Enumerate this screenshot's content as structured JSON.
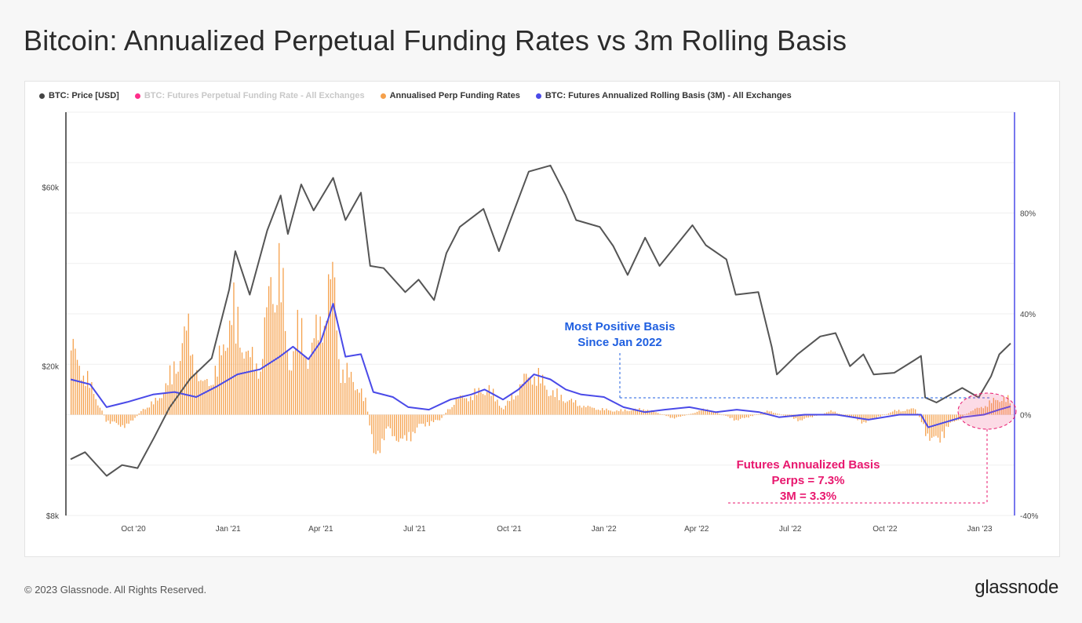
{
  "title": "Bitcoin: Annualized Perpetual Funding Rates vs 3m Rolling Basis",
  "footer": {
    "copyright": "© 2023 Glassnode. All Rights Reserved.",
    "brand": "glassnode"
  },
  "legend": [
    {
      "label": "BTC: Price [USD]",
      "color": "#444444",
      "faded": false
    },
    {
      "label": "BTC: Futures Perpetual Funding Rate - All Exchanges",
      "color": "#ff2d8a",
      "faded": true
    },
    {
      "label": "Annualised Perp Funding Rates",
      "color": "#f5a04b",
      "faded": false
    },
    {
      "label": "BTC: Futures Annualized Rolling Basis (3M) - All Exchanges",
      "color": "#4a4ae8",
      "faded": false
    }
  ],
  "annotations": {
    "basis_peak": [
      "Most Positive Basis",
      "Since Jan 2022"
    ],
    "current": [
      "Futures Annualized Basis",
      "Perps = 7.3%",
      "3M = 3.3%"
    ]
  },
  "chart_data": {
    "type": "line",
    "x_range": [
      "2020-08-01",
      "2023-01-31"
    ],
    "x_ticks": [
      "Oct '20",
      "Jan '21",
      "Apr '21",
      "Jul '21",
      "Oct '21",
      "Jan '22",
      "Apr '22",
      "Jul '22",
      "Oct '22",
      "Jan '23"
    ],
    "y_left": {
      "scale": "log",
      "ticks": [
        "$8k",
        "$20k",
        "$60k"
      ],
      "range": [
        8000,
        95000
      ]
    },
    "y_right": {
      "ticks": [
        "-40%",
        "0%",
        "40%",
        "80%"
      ],
      "range": [
        -40,
        120
      ]
    },
    "grid": true,
    "series": [
      {
        "name": "BTC: Price [USD]",
        "color": "#555555",
        "axis": "left",
        "points": [
          [
            "2020-08-01",
            11300
          ],
          [
            "2020-08-15",
            11800
          ],
          [
            "2020-09-05",
            10200
          ],
          [
            "2020-09-20",
            10900
          ],
          [
            "2020-10-05",
            10700
          ],
          [
            "2020-10-21",
            12900
          ],
          [
            "2020-11-05",
            15500
          ],
          [
            "2020-11-25",
            18500
          ],
          [
            "2020-12-16",
            21000
          ],
          [
            "2021-01-02",
            32000
          ],
          [
            "2021-01-08",
            40500
          ],
          [
            "2021-01-22",
            31000
          ],
          [
            "2021-02-08",
            46000
          ],
          [
            "2021-02-21",
            57000
          ],
          [
            "2021-02-28",
            45000
          ],
          [
            "2021-03-13",
            61000
          ],
          [
            "2021-03-25",
            52000
          ],
          [
            "2021-04-13",
            63500
          ],
          [
            "2021-04-25",
            49000
          ],
          [
            "2021-05-10",
            58000
          ],
          [
            "2021-05-19",
            37000
          ],
          [
            "2021-06-01",
            36500
          ],
          [
            "2021-06-22",
            31500
          ],
          [
            "2021-07-05",
            34000
          ],
          [
            "2021-07-20",
            30000
          ],
          [
            "2021-08-01",
            40000
          ],
          [
            "2021-08-14",
            47000
          ],
          [
            "2021-09-06",
            52500
          ],
          [
            "2021-09-21",
            40500
          ],
          [
            "2021-10-01",
            48000
          ],
          [
            "2021-10-20",
            66000
          ],
          [
            "2021-11-10",
            68500
          ],
          [
            "2021-11-25",
            57000
          ],
          [
            "2021-12-05",
            49000
          ],
          [
            "2021-12-28",
            47000
          ],
          [
            "2022-01-10",
            41800
          ],
          [
            "2022-01-24",
            35000
          ],
          [
            "2022-02-10",
            44000
          ],
          [
            "2022-02-24",
            37000
          ],
          [
            "2022-03-28",
            47500
          ],
          [
            "2022-04-10",
            42000
          ],
          [
            "2022-04-30",
            38500
          ],
          [
            "2022-05-09",
            31000
          ],
          [
            "2022-05-31",
            31500
          ],
          [
            "2022-06-13",
            22500
          ],
          [
            "2022-06-18",
            19000
          ],
          [
            "2022-07-08",
            21500
          ],
          [
            "2022-07-30",
            24000
          ],
          [
            "2022-08-14",
            24500
          ],
          [
            "2022-08-28",
            20000
          ],
          [
            "2022-09-10",
            21500
          ],
          [
            "2022-09-20",
            19000
          ],
          [
            "2022-10-10",
            19200
          ],
          [
            "2022-10-29",
            20700
          ],
          [
            "2022-11-05",
            21300
          ],
          [
            "2022-11-09",
            16500
          ],
          [
            "2022-11-20",
            16000
          ],
          [
            "2022-12-15",
            17500
          ],
          [
            "2022-12-31",
            16500
          ],
          [
            "2023-01-12",
            18800
          ],
          [
            "2023-01-20",
            21500
          ],
          [
            "2023-01-31",
            23000
          ]
        ]
      },
      {
        "name": "BTC: Futures Annualized Rolling Basis (3M) - All Exchanges",
        "color": "#4a4ae8",
        "axis": "right",
        "points": [
          [
            "2020-08-01",
            14
          ],
          [
            "2020-08-20",
            12
          ],
          [
            "2020-09-05",
            3
          ],
          [
            "2020-09-25",
            5
          ],
          [
            "2020-10-20",
            8
          ],
          [
            "2020-11-10",
            9
          ],
          [
            "2020-12-01",
            7
          ],
          [
            "2020-12-20",
            11
          ],
          [
            "2021-01-10",
            16
          ],
          [
            "2021-02-01",
            18
          ],
          [
            "2021-02-20",
            23
          ],
          [
            "2021-03-05",
            27
          ],
          [
            "2021-03-20",
            22
          ],
          [
            "2021-04-01",
            29
          ],
          [
            "2021-04-13",
            44
          ],
          [
            "2021-04-25",
            23
          ],
          [
            "2021-05-10",
            24
          ],
          [
            "2021-05-22",
            9
          ],
          [
            "2021-06-10",
            7
          ],
          [
            "2021-06-25",
            3
          ],
          [
            "2021-07-15",
            2
          ],
          [
            "2021-08-05",
            6
          ],
          [
            "2021-08-25",
            8
          ],
          [
            "2021-09-07",
            10
          ],
          [
            "2021-09-25",
            6
          ],
          [
            "2021-10-10",
            10
          ],
          [
            "2021-10-25",
            16
          ],
          [
            "2021-11-10",
            14
          ],
          [
            "2021-11-25",
            10
          ],
          [
            "2021-12-10",
            8
          ],
          [
            "2022-01-01",
            7
          ],
          [
            "2022-01-20",
            3
          ],
          [
            "2022-02-10",
            1
          ],
          [
            "2022-03-01",
            2
          ],
          [
            "2022-03-25",
            3
          ],
          [
            "2022-04-20",
            1
          ],
          [
            "2022-05-10",
            2
          ],
          [
            "2022-06-01",
            1
          ],
          [
            "2022-06-20",
            -1
          ],
          [
            "2022-07-15",
            0
          ],
          [
            "2022-08-15",
            0
          ],
          [
            "2022-09-15",
            -2
          ],
          [
            "2022-10-15",
            0
          ],
          [
            "2022-11-05",
            0
          ],
          [
            "2022-11-12",
            -5
          ],
          [
            "2022-11-20",
            -4
          ],
          [
            "2022-12-15",
            -1
          ],
          [
            "2023-01-05",
            0
          ],
          [
            "2023-01-20",
            2
          ],
          [
            "2023-01-31",
            3.3
          ]
        ]
      },
      {
        "name": "Annualised Perp Funding Rates",
        "color": "#f5a04b",
        "axis": "right",
        "type": "bar",
        "points": [
          [
            "2020-08-01",
            35
          ],
          [
            "2020-08-20",
            15
          ],
          [
            "2020-09-05",
            -4
          ],
          [
            "2020-09-25",
            -6
          ],
          [
            "2020-10-10",
            3
          ],
          [
            "2020-10-25",
            8
          ],
          [
            "2020-11-10",
            25
          ],
          [
            "2020-11-22",
            45
          ],
          [
            "2020-12-05",
            15
          ],
          [
            "2020-12-20",
            22
          ],
          [
            "2021-01-05",
            55
          ],
          [
            "2021-01-20",
            30
          ],
          [
            "2021-02-01",
            25
          ],
          [
            "2021-02-10",
            65
          ],
          [
            "2021-02-20",
            80
          ],
          [
            "2021-02-28",
            25
          ],
          [
            "2021-03-10",
            45
          ],
          [
            "2021-03-20",
            30
          ],
          [
            "2021-04-01",
            50
          ],
          [
            "2021-04-13",
            72
          ],
          [
            "2021-04-20",
            22
          ],
          [
            "2021-05-01",
            20
          ],
          [
            "2021-05-15",
            6
          ],
          [
            "2021-05-22",
            -22
          ],
          [
            "2021-06-05",
            -8
          ],
          [
            "2021-06-20",
            -15
          ],
          [
            "2021-07-05",
            -6
          ],
          [
            "2021-07-25",
            -3
          ],
          [
            "2021-08-10",
            8
          ],
          [
            "2021-08-25",
            10
          ],
          [
            "2021-09-10",
            14
          ],
          [
            "2021-09-25",
            3
          ],
          [
            "2021-10-15",
            18
          ],
          [
            "2021-10-25",
            22
          ],
          [
            "2021-11-10",
            12
          ],
          [
            "2021-11-25",
            8
          ],
          [
            "2021-12-15",
            4
          ],
          [
            "2022-01-10",
            2
          ],
          [
            "2022-02-10",
            3
          ],
          [
            "2022-03-10",
            -2
          ],
          [
            "2022-04-10",
            3
          ],
          [
            "2022-05-10",
            -3
          ],
          [
            "2022-06-10",
            2
          ],
          [
            "2022-07-10",
            -3
          ],
          [
            "2022-08-10",
            2
          ],
          [
            "2022-09-10",
            -4
          ],
          [
            "2022-10-10",
            2
          ],
          [
            "2022-10-30",
            3
          ],
          [
            "2022-11-10",
            -10
          ],
          [
            "2022-11-20",
            -15
          ],
          [
            "2022-12-01",
            -6
          ],
          [
            "2022-12-20",
            1
          ],
          [
            "2023-01-10",
            6
          ],
          [
            "2023-01-20",
            9
          ],
          [
            "2023-01-31",
            7.3
          ]
        ]
      }
    ]
  }
}
